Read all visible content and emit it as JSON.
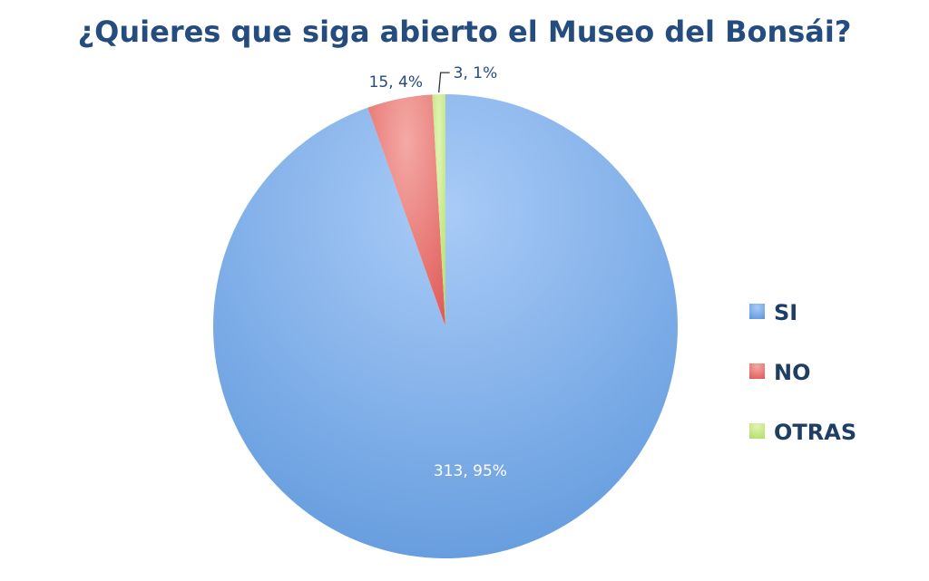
{
  "chart_data": {
    "type": "pie",
    "title": "¿Quieres que siga abierto el Museo del Bonsái?",
    "slices": [
      {
        "name": "SI",
        "value": 313,
        "percent": 95,
        "label": "313, 95%",
        "color": "#7aaae8"
      },
      {
        "name": "NO",
        "value": 15,
        "percent": 4,
        "label": "15, 4%",
        "color": "#ec7b78"
      },
      {
        "name": "OTRAS",
        "value": 3,
        "percent": 1,
        "label": "3, 1%",
        "color": "#c9ea8a"
      }
    ],
    "legend_position": "right",
    "colors": {
      "title": "#244c7e",
      "label_dark": "#244c7e",
      "label_light": "#ffffff",
      "legend_text": "#1f3e66"
    }
  }
}
